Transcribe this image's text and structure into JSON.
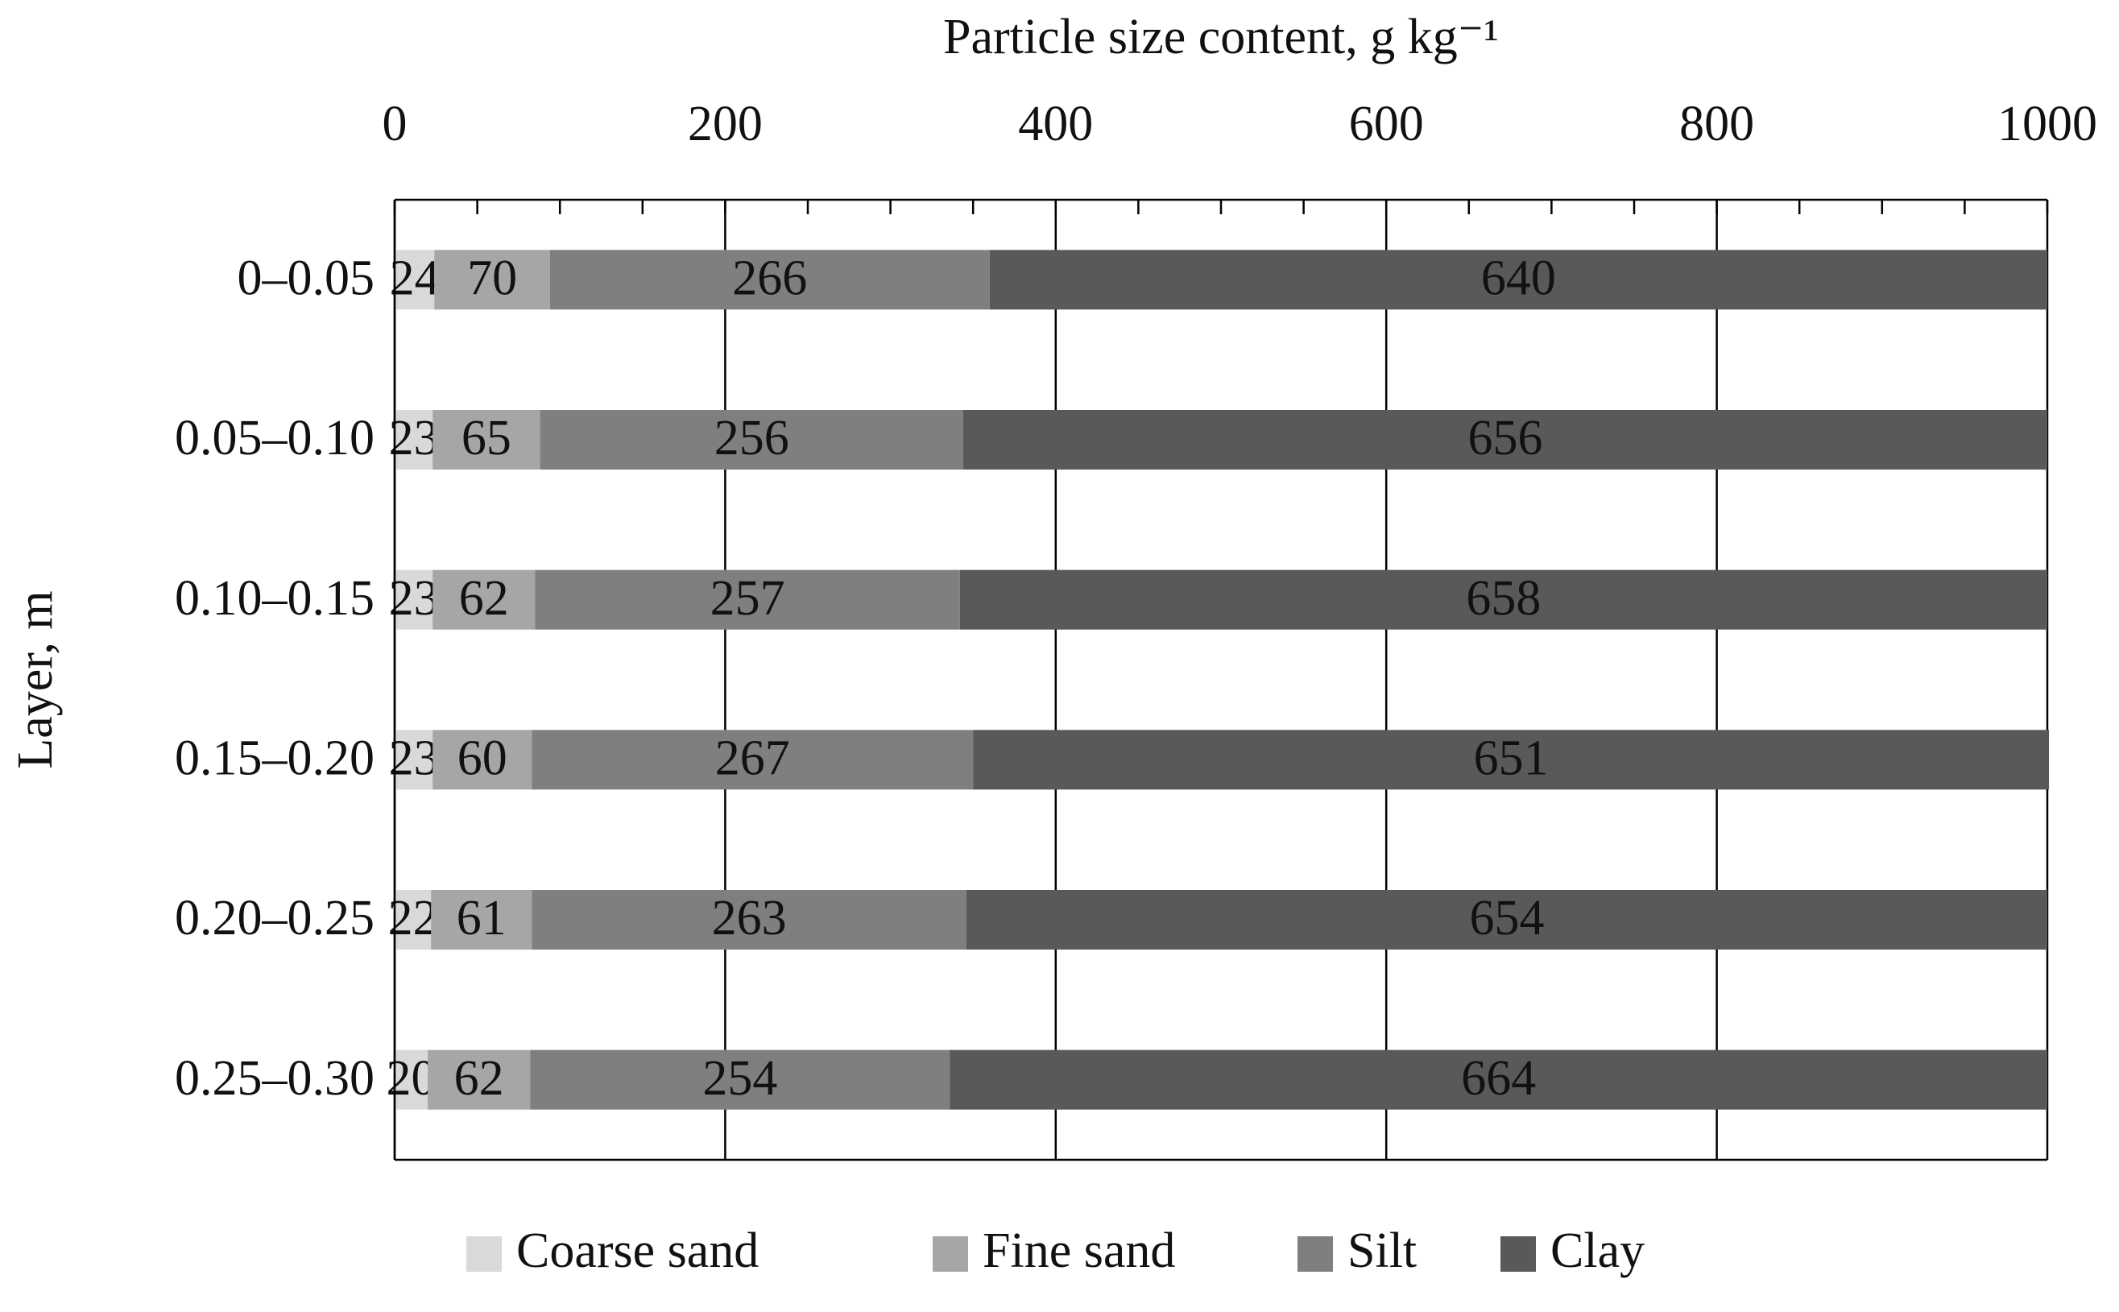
{
  "chart_data": {
    "type": "stacked-bar-horizontal",
    "title": "Particle size content, g kg⁻¹",
    "y_label": "Layer, m",
    "categories": [
      "0–0.05",
      "0.05–0.10",
      "0.10–0.15",
      "0.15–0.20",
      "0.20–0.25",
      "0.25–0.30"
    ],
    "series": [
      {
        "name": "Coarse sand",
        "color": "#d9d9d9",
        "values": [
          24,
          23,
          23,
          23,
          22,
          20
        ]
      },
      {
        "name": "Fine sand",
        "color": "#a6a6a6",
        "values": [
          70,
          65,
          62,
          60,
          61,
          62
        ]
      },
      {
        "name": "Silt",
        "color": "#7f7f7f",
        "values": [
          266,
          256,
          257,
          267,
          263,
          254
        ]
      },
      {
        "name": "Clay",
        "color": "#595959",
        "values": [
          640,
          656,
          658,
          651,
          654,
          664
        ]
      }
    ],
    "xlim": [
      0,
      1000
    ],
    "xticks": [
      0,
      200,
      400,
      600,
      800,
      1000
    ],
    "xminorticks": [
      50,
      100,
      150,
      250,
      300,
      350,
      450,
      500,
      550,
      650,
      700,
      750,
      850,
      900,
      950
    ],
    "grid": true,
    "legend": "bottom"
  }
}
